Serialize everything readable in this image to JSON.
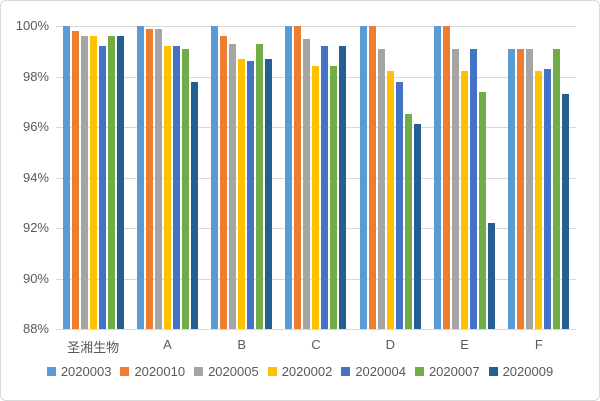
{
  "chart_data": {
    "type": "bar",
    "title": "",
    "xlabel": "",
    "ylabel": "",
    "ylim": [
      88,
      100
    ],
    "ytick_step": 2,
    "yticks": [
      "100%",
      "98%",
      "96%",
      "94%",
      "92%",
      "90%",
      "88%"
    ],
    "grid": true,
    "legend_position": "bottom",
    "categories": [
      "圣湘生物",
      "A",
      "B",
      "C",
      "D",
      "E",
      "F"
    ],
    "series": [
      {
        "name": "2020003",
        "color": "#5B9BD5",
        "values": [
          100,
          100,
          100,
          100,
          100,
          100,
          99.1
        ]
      },
      {
        "name": "2020010",
        "color": "#ED7D31",
        "values": [
          99.8,
          99.9,
          99.6,
          100,
          100,
          100,
          99.1
        ]
      },
      {
        "name": "2020005",
        "color": "#A5A5A5",
        "values": [
          99.6,
          99.9,
          99.3,
          99.5,
          99.1,
          99.1,
          99.1
        ]
      },
      {
        "name": "2020002",
        "color": "#FFC000",
        "values": [
          99.6,
          99.2,
          98.7,
          98.4,
          98.2,
          98.2,
          98.2
        ]
      },
      {
        "name": "2020004",
        "color": "#4472C4",
        "values": [
          99.2,
          99.2,
          98.6,
          99.2,
          97.8,
          99.1,
          98.3
        ]
      },
      {
        "name": "2020007",
        "color": "#70AD47",
        "values": [
          99.6,
          99.1,
          99.3,
          98.4,
          96.5,
          97.4,
          99.1
        ]
      },
      {
        "name": "2020009",
        "color": "#255E91",
        "values": [
          99.6,
          97.8,
          98.7,
          99.2,
          96.1,
          92.2,
          97.3
        ]
      }
    ],
    "colors": {
      "gridline": "#D9D9D9",
      "axis_text": "#595959",
      "frame_border": "#D9D9D9",
      "background": "#FFFFFF"
    }
  }
}
